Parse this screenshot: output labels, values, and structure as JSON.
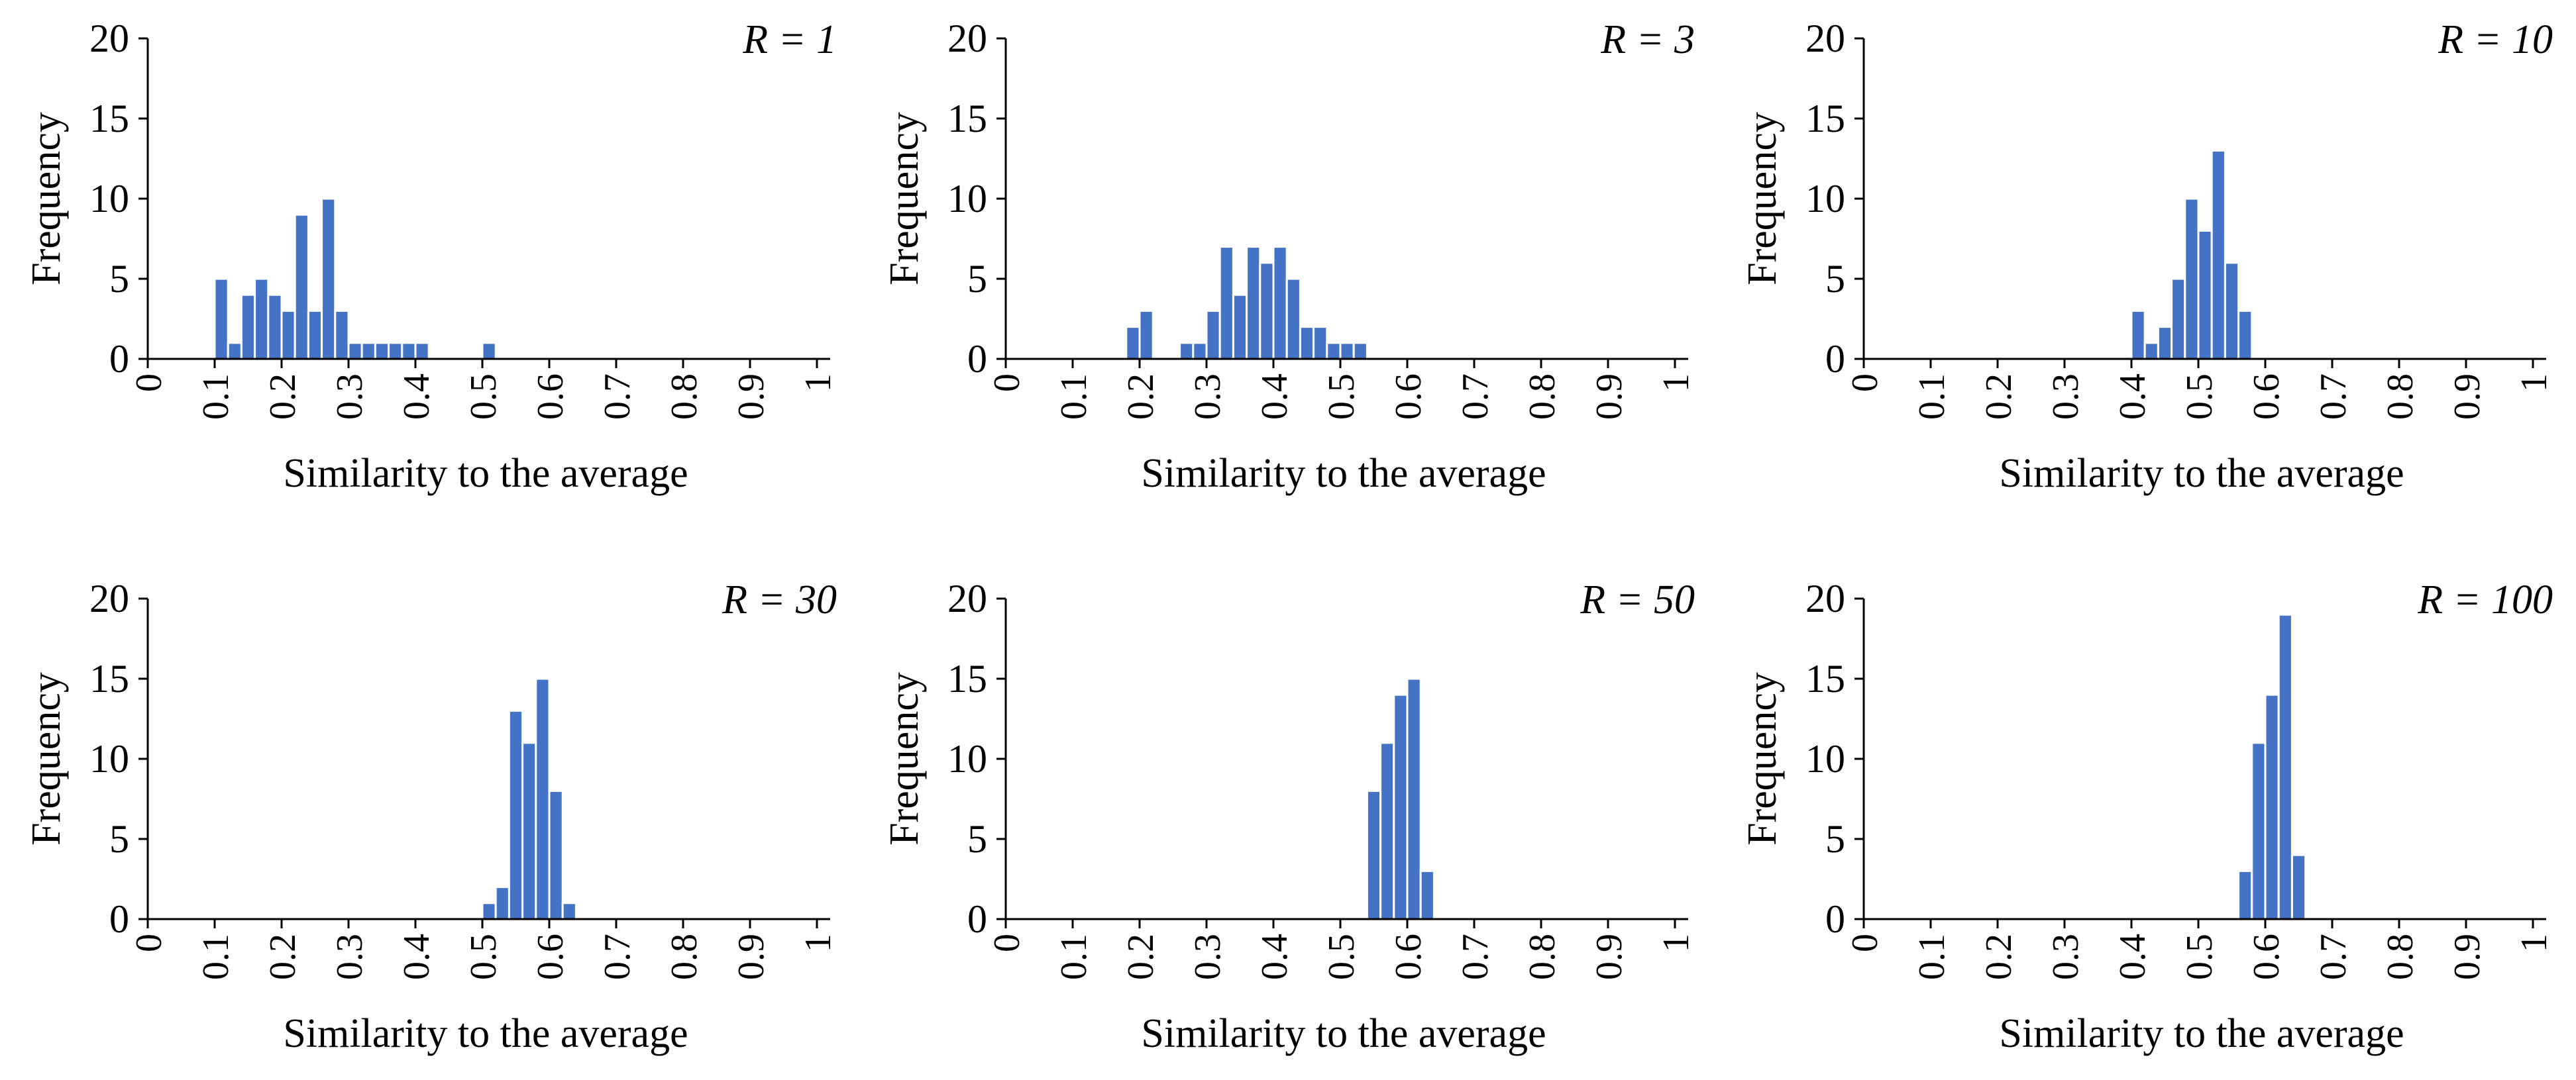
{
  "bar_color": "#4472C4",
  "axis_color": "#000000",
  "chart_data": [
    {
      "type": "bar",
      "panel_label": "R = 1",
      "R": "1",
      "ylabel": "Frequency",
      "xlabel": "Similarity to the average",
      "ylim": [
        0,
        20
      ],
      "xlim": [
        0,
        1
      ],
      "yticks": [
        "0",
        "5",
        "10",
        "15",
        "20"
      ],
      "xticks": [
        "0",
        "0.1",
        "0.2",
        "0.3",
        "0.4",
        "0.5",
        "0.6",
        "0.7",
        "0.8",
        "0.9",
        "1"
      ],
      "bin_width": 0.02,
      "bin_starts": [
        0.1,
        0.12,
        0.14,
        0.16,
        0.18,
        0.2,
        0.22,
        0.24,
        0.26,
        0.28,
        0.3,
        0.32,
        0.34,
        0.36,
        0.38,
        0.4,
        0.5
      ],
      "values": [
        5,
        1,
        4,
        5,
        4,
        3,
        9,
        3,
        10,
        3,
        1,
        1,
        1,
        1,
        1,
        1,
        1
      ]
    },
    {
      "type": "bar",
      "panel_label": "R = 3",
      "R": "3",
      "ylabel": "Frequency",
      "xlabel": "Similarity to the average",
      "ylim": [
        0,
        20
      ],
      "xlim": [
        0,
        1
      ],
      "yticks": [
        "0",
        "5",
        "10",
        "15",
        "20"
      ],
      "xticks": [
        "0",
        "0.1",
        "0.2",
        "0.3",
        "0.4",
        "0.5",
        "0.6",
        "0.7",
        "0.8",
        "0.9",
        "1"
      ],
      "bin_width": 0.02,
      "bin_starts": [
        0.18,
        0.2,
        0.26,
        0.28,
        0.3,
        0.32,
        0.34,
        0.36,
        0.38,
        0.4,
        0.42,
        0.44,
        0.46,
        0.48,
        0.5,
        0.52
      ],
      "values": [
        2,
        3,
        1,
        1,
        3,
        7,
        4,
        7,
        6,
        7,
        5,
        2,
        2,
        1,
        1,
        1
      ]
    },
    {
      "type": "bar",
      "panel_label": "R = 10",
      "R": "10",
      "ylabel": "Frequency",
      "xlabel": "Similarity to the average",
      "ylim": [
        0,
        20
      ],
      "xlim": [
        0,
        1
      ],
      "yticks": [
        "0",
        "5",
        "10",
        "15",
        "20"
      ],
      "xticks": [
        "0",
        "0.1",
        "0.2",
        "0.3",
        "0.4",
        "0.5",
        "0.6",
        "0.7",
        "0.8",
        "0.9",
        "1"
      ],
      "bin_width": 0.02,
      "bin_starts": [
        0.4,
        0.42,
        0.44,
        0.46,
        0.48,
        0.5,
        0.52,
        0.54,
        0.56
      ],
      "values": [
        3,
        1,
        2,
        5,
        10,
        8,
        13,
        6,
        3
      ]
    },
    {
      "type": "bar",
      "panel_label": "R = 30",
      "R": "30",
      "ylabel": "Frequency",
      "xlabel": "Similarity to the average",
      "ylim": [
        0,
        20
      ],
      "xlim": [
        0,
        1
      ],
      "yticks": [
        "0",
        "5",
        "10",
        "15",
        "20"
      ],
      "xticks": [
        "0",
        "0.1",
        "0.2",
        "0.3",
        "0.4",
        "0.5",
        "0.6",
        "0.7",
        "0.8",
        "0.9",
        "1"
      ],
      "bin_width": 0.02,
      "bin_starts": [
        0.5,
        0.52,
        0.54,
        0.56,
        0.58,
        0.6,
        0.62
      ],
      "values": [
        1,
        2,
        13,
        11,
        15,
        8,
        1
      ]
    },
    {
      "type": "bar",
      "panel_label": "R = 50",
      "R": "50",
      "ylabel": "Frequency",
      "xlabel": "Similarity to the average",
      "ylim": [
        0,
        20
      ],
      "xlim": [
        0,
        1
      ],
      "yticks": [
        "0",
        "5",
        "10",
        "15",
        "20"
      ],
      "xticks": [
        "0",
        "0.1",
        "0.2",
        "0.3",
        "0.4",
        "0.5",
        "0.6",
        "0.7",
        "0.8",
        "0.9",
        "1"
      ],
      "bin_width": 0.02,
      "bin_starts": [
        0.54,
        0.56,
        0.58,
        0.6,
        0.62
      ],
      "values": [
        8,
        11,
        14,
        15,
        3
      ]
    },
    {
      "type": "bar",
      "panel_label": "R = 100",
      "R": "100",
      "ylabel": "Frequency",
      "xlabel": "Similarity to the average",
      "ylim": [
        0,
        20
      ],
      "xlim": [
        0,
        1
      ],
      "yticks": [
        "0",
        "5",
        "10",
        "15",
        "20"
      ],
      "xticks": [
        "0",
        "0.1",
        "0.2",
        "0.3",
        "0.4",
        "0.5",
        "0.6",
        "0.7",
        "0.8",
        "0.9",
        "1"
      ],
      "bin_width": 0.02,
      "bin_starts": [
        0.56,
        0.58,
        0.6,
        0.62,
        0.64
      ],
      "values": [
        3,
        11,
        14,
        19,
        4
      ]
    }
  ]
}
